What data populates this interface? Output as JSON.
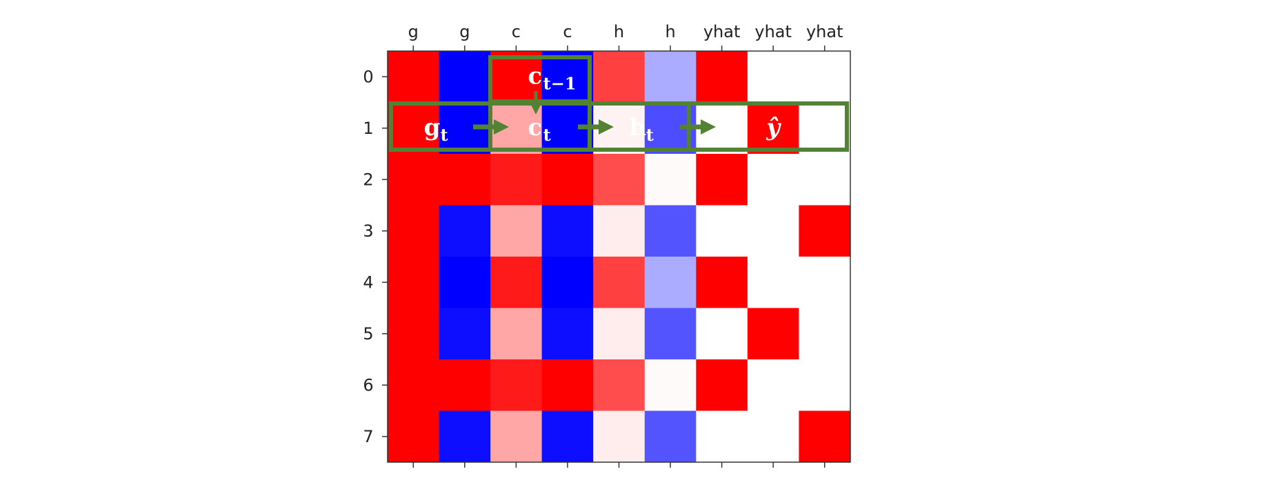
{
  "chart_data": {
    "type": "heatmap",
    "x_tick_labels": [
      "g",
      "g",
      "c",
      "c",
      "h",
      "h",
      "yhat",
      "yhat",
      "yhat"
    ],
    "y_tick_labels": [
      "0",
      "1",
      "2",
      "3",
      "4",
      "5",
      "6",
      "7"
    ],
    "colormap": "bwr",
    "value_range": [
      -1,
      1
    ],
    "values": [
      [
        1,
        -1,
        1,
        -1,
        0.75,
        -0.33,
        1,
        0,
        0
      ],
      [
        1,
        -1,
        0.35,
        -1,
        0.05,
        -0.7,
        0,
        1,
        0
      ],
      [
        1,
        1,
        0.9,
        1,
        0.7,
        0.02,
        1,
        0,
        0
      ],
      [
        1,
        -0.95,
        0.35,
        -0.95,
        0.07,
        -0.67,
        0,
        0,
        1
      ],
      [
        1,
        -1,
        0.9,
        -1,
        0.75,
        -0.33,
        1,
        0,
        0
      ],
      [
        1,
        -0.95,
        0.35,
        -0.95,
        0.07,
        -0.67,
        0,
        1,
        0
      ],
      [
        1,
        1,
        0.9,
        1,
        0.7,
        0.02,
        1,
        0,
        0
      ],
      [
        1,
        -0.95,
        0.35,
        -0.95,
        0.07,
        -0.67,
        0,
        0,
        1
      ]
    ],
    "annotations": {
      "outline_color": "#548235",
      "labels": [
        {
          "main": "c",
          "sub": "t−1",
          "row": 0,
          "col": 2.5,
          "color": "#ffffff"
        },
        {
          "main": "g",
          "sub": "t",
          "row": 1,
          "col": 0.5,
          "color": "#ffffff"
        },
        {
          "main": "c",
          "sub": "t",
          "row": 1,
          "col": 2.5,
          "color": "#ffffff"
        },
        {
          "main": "h",
          "sub": "t",
          "row": 1,
          "col": 4.5,
          "color": "#ffffff"
        },
        {
          "main": "ŷ",
          "sub": "",
          "row": 1,
          "col": 7,
          "color": "#111111"
        }
      ]
    }
  }
}
